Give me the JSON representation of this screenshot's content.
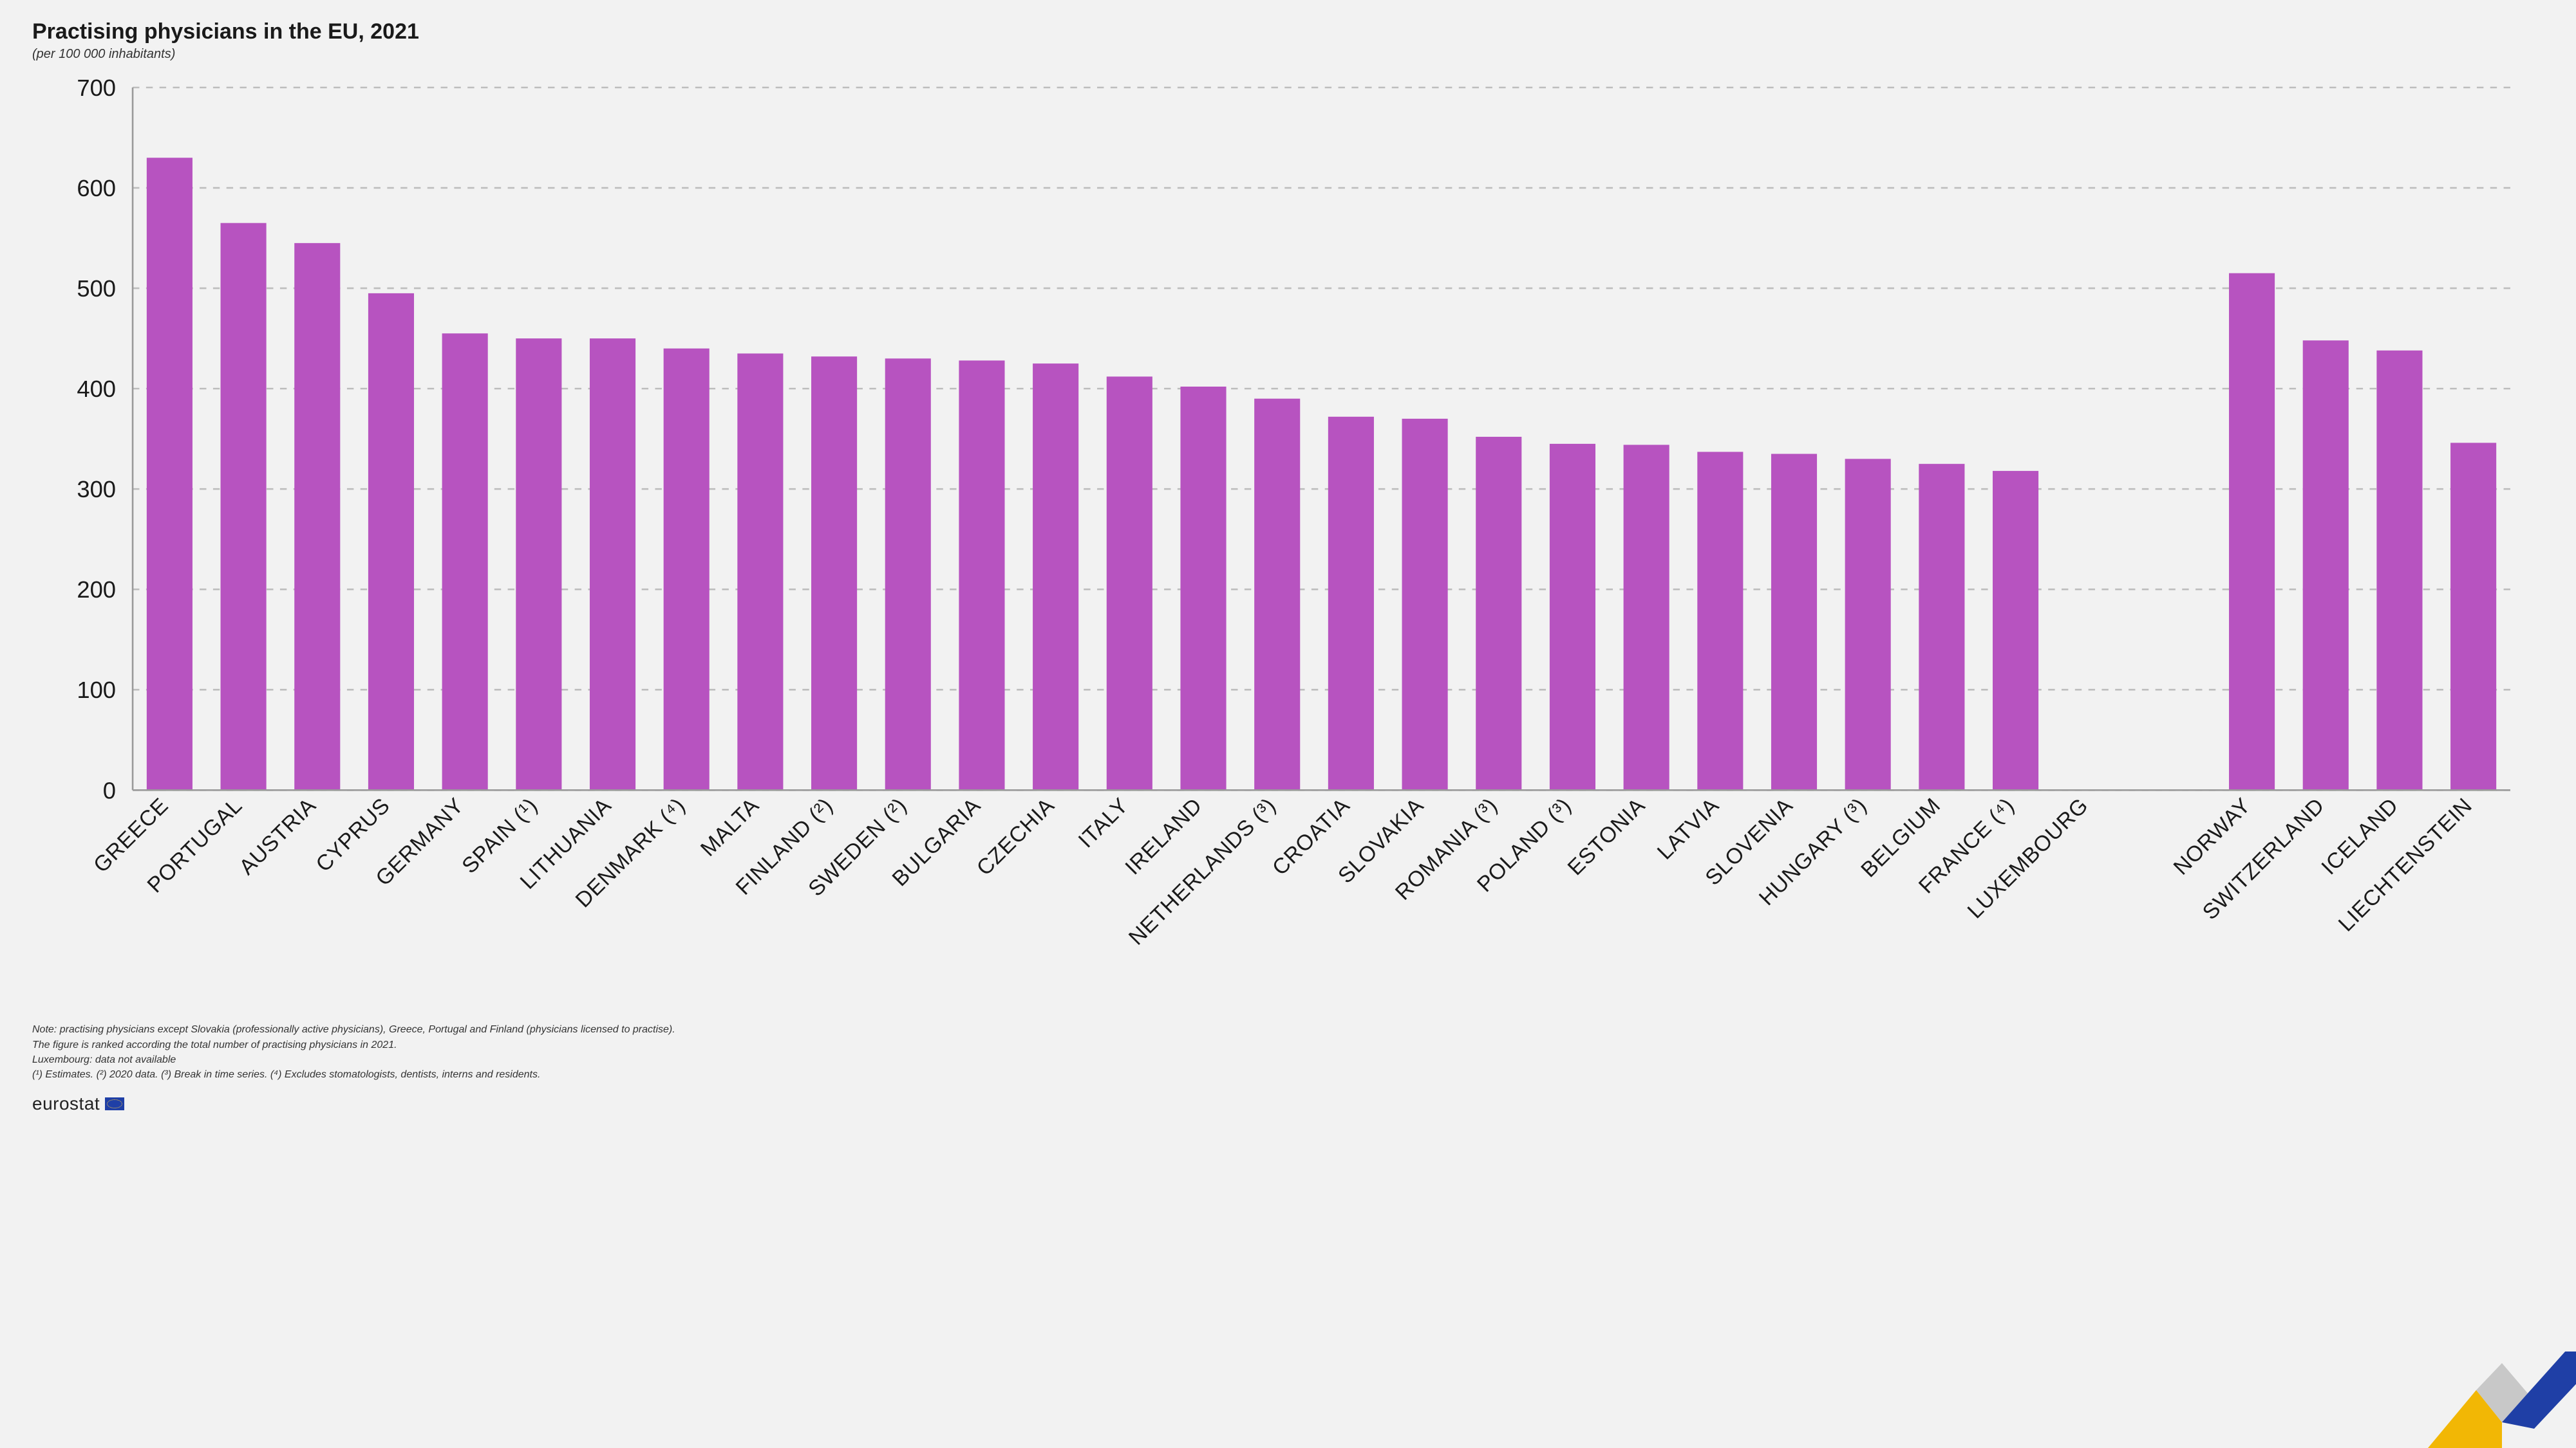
{
  "title": "Practising physicians in the EU, 2021",
  "subtitle": "(per 100 000 inhabitants)",
  "chart": {
    "type": "bar",
    "bar_color": "#b753c0",
    "background_color": "#f2f2f2",
    "grid_color": "#bdbdbd",
    "axis_color": "#9a9a9a",
    "label_color": "#1a1a1a",
    "title_fontsize": 34,
    "subtitle_fontsize": 20,
    "label_fontsize": 13,
    "ytick_fontsize": 14,
    "bar_width_ratio": 0.62,
    "ylim": [
      0,
      700
    ],
    "ytick_step": 100,
    "group_gap_after_index": 27,
    "group_gap_units": 1.2,
    "categories": [
      "GREECE",
      "PORTUGAL",
      "AUSTRIA",
      "CYPRUS",
      "GERMANY",
      "SPAIN (¹)",
      "LITHUANIA",
      "DENMARK (⁴)",
      "MALTA",
      "FINLAND (²)",
      "SWEDEN (²)",
      "BULGARIA",
      "CZECHIA",
      "ITALY",
      "IRELAND",
      "NETHERLANDS (³)",
      "CROATIA",
      "SLOVAKIA",
      "ROMANIA (³)",
      "POLAND (³)",
      "ESTONIA",
      "LATVIA",
      "SLOVENIA",
      "HUNGARY (³)",
      "BELGIUM",
      "FRANCE (⁴)",
      "LUXEMBOURG",
      "NORWAY",
      "SWITZERLAND",
      "ICELAND",
      "LIECHTENSTEIN"
    ],
    "values": [
      630,
      565,
      545,
      495,
      455,
      450,
      450,
      440,
      435,
      432,
      430,
      428,
      425,
      412,
      402,
      390,
      372,
      370,
      352,
      345,
      344,
      337,
      335,
      330,
      325,
      318,
      null,
      515,
      448,
      438,
      346
    ]
  },
  "notes": [
    "Note: practising physicians except Slovakia (professionally active physicians), Greece, Portugal and Finland (physicians licensed to practise).",
    "The figure is ranked according the total number of practising physicians in 2021.",
    "Luxembourg: data not available",
    "(¹) Estimates. (²) 2020 data. (³) Break in time series. (⁴) Excludes stomatologists, dentists, interns and residents."
  ],
  "branding": {
    "logo_text": "eurostat",
    "swoosh_colors": {
      "yellow": "#f2b705",
      "gray": "#c8c8c8",
      "blue": "#1f3fa6"
    }
  }
}
